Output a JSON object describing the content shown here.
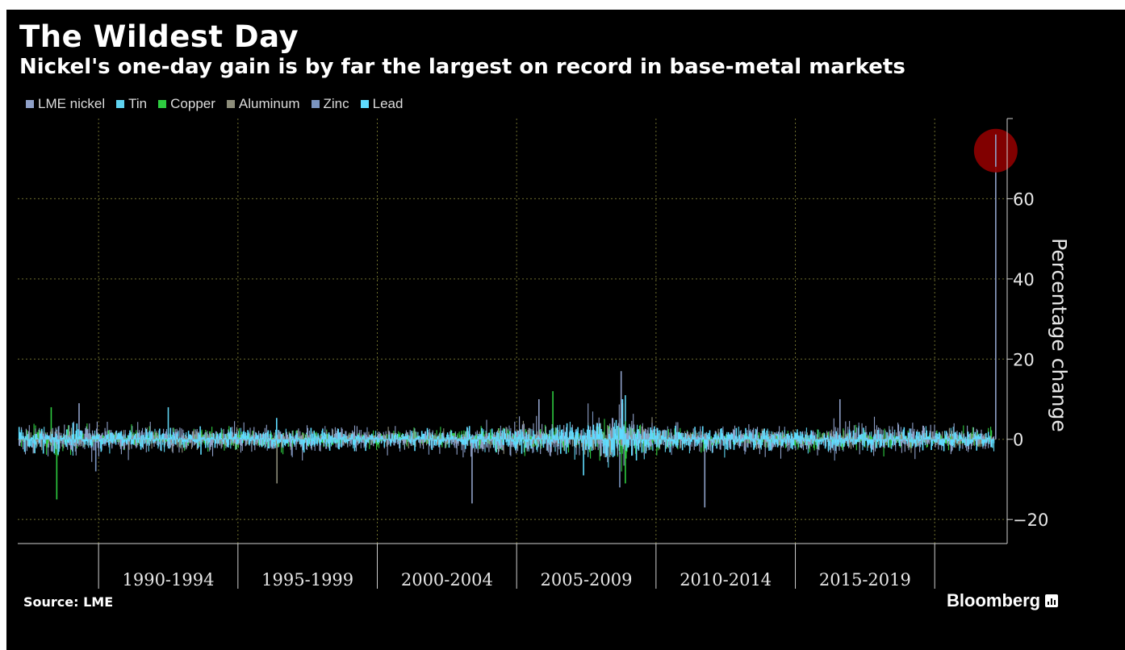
{
  "header": {
    "title": "The Wildest Day",
    "subtitle": "Nickel's one-day gain is by far the largest on record in base-metal markets"
  },
  "footer": {
    "source": "Source: LME",
    "brand": "Bloomberg"
  },
  "colors": {
    "background": "#000000",
    "grid": "#6e6e2e",
    "axis": "#cfcfcf",
    "highlight": "#8b0000"
  },
  "chart_data": {
    "type": "line",
    "title": "The Wildest Day",
    "subtitle": "Nickel's one-day gain is by far the largest on record in base-metal markets",
    "ylabel": "Percentage change",
    "xlabel": "",
    "ylim": [
      -26,
      80
    ],
    "xlim": [
      1987.1,
      2022.6
    ],
    "yticks": [
      60,
      40,
      20,
      0,
      -20
    ],
    "x_tick_labels": [
      {
        "label": "1990-1994",
        "start": 1990,
        "end": 1995
      },
      {
        "label": "1995-1999",
        "start": 1995,
        "end": 2000
      },
      {
        "label": "2000-2004",
        "start": 2000,
        "end": 2005
      },
      {
        "label": "2005-2009",
        "start": 2005,
        "end": 2010
      },
      {
        "label": "2010-2014",
        "start": 2010,
        "end": 2015
      },
      {
        "label": "2015-2019",
        "start": 2015,
        "end": 2020
      }
    ],
    "grid": true,
    "legend_position": "top-left",
    "series": [
      {
        "name": "LME nickel",
        "color": "#8fa0c8",
        "volatility": 3.2,
        "peaks": [
          {
            "x": 2022.19,
            "y": 72
          },
          {
            "x": 2008.75,
            "y": 17
          },
          {
            "x": 2011.75,
            "y": -17
          },
          {
            "x": 2005.8,
            "y": 10
          },
          {
            "x": 2003.4,
            "y": -16
          },
          {
            "x": 2016.6,
            "y": 10
          },
          {
            "x": 1989.3,
            "y": 9
          }
        ]
      },
      {
        "name": "Tin",
        "color": "#5fd3f0",
        "volatility": 2.2,
        "peaks": [
          {
            "x": 2008.9,
            "y": 11
          },
          {
            "x": 1992.5,
            "y": 8
          }
        ]
      },
      {
        "name": "Copper",
        "color": "#2ecc40",
        "volatility": 2.3,
        "peaks": [
          {
            "x": 1988.5,
            "y": -15
          },
          {
            "x": 2006.3,
            "y": 12
          },
          {
            "x": 2008.9,
            "y": -11
          },
          {
            "x": 1988.3,
            "y": 8
          }
        ]
      },
      {
        "name": "Aluminum",
        "color": "#8d8d7a",
        "volatility": 2.0,
        "peaks": [
          {
            "x": 1996.4,
            "y": -11
          },
          {
            "x": 2008.8,
            "y": 9
          }
        ]
      },
      {
        "name": "Zinc",
        "color": "#7a94c0",
        "volatility": 2.4,
        "peaks": [
          {
            "x": 2008.7,
            "y": -12
          },
          {
            "x": 1989.9,
            "y": -8
          }
        ]
      },
      {
        "name": "Lead",
        "color": "#5fdcff",
        "volatility": 2.3,
        "peaks": [
          {
            "x": 2008.8,
            "y": 10
          },
          {
            "x": 2007.4,
            "y": -9
          }
        ]
      }
    ],
    "annotations": [
      {
        "type": "circle",
        "x": 2022.19,
        "y": 72,
        "color": "#8b0000"
      }
    ]
  }
}
